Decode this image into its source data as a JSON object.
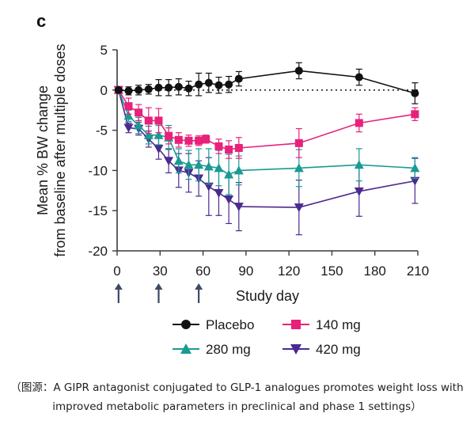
{
  "panel_label": "c",
  "caption": {
    "line1": "（图源：A GIPR antagonist conjugated to GLP-1 analogues promotes weight loss with",
    "line2": "improved metabolic parameters in preclinical and phase 1 settings）"
  },
  "chart_data": {
    "type": "line",
    "title": "",
    "xlabel": "Study day",
    "ylabel": [
      "Mean % BW change",
      "from baseline after multiple doses"
    ],
    "xlim": [
      0,
      210
    ],
    "ylim": [
      -20,
      5
    ],
    "xticks": [
      0,
      30,
      60,
      90,
      120,
      150,
      180,
      210
    ],
    "yticks": [
      5,
      0,
      -5,
      -10,
      -15,
      -20
    ],
    "dose_markers_day": [
      1,
      29,
      57
    ],
    "reference_line_y": 0,
    "legend_position": "bottom",
    "series": [
      {
        "name": "Placebo",
        "marker": "circle",
        "color": "#111111",
        "x": [
          1,
          8,
          15,
          22,
          29,
          36,
          43,
          50,
          57,
          64,
          71,
          78,
          85,
          127,
          169,
          208
        ],
        "y": [
          0,
          -0.1,
          0,
          0.1,
          0.3,
          0.3,
          0.4,
          0.2,
          0.7,
          0.9,
          0.6,
          0.7,
          1.4,
          2.4,
          1.6,
          -0.4
        ],
        "err": [
          0.2,
          0.5,
          0.6,
          0.6,
          1.0,
          1.0,
          1.0,
          0.9,
          1.4,
          1.2,
          1.0,
          1.0,
          0.9,
          1.0,
          1.0,
          1.3
        ]
      },
      {
        "name": "140 mg",
        "marker": "square",
        "color": "#e8217a",
        "x": [
          1,
          8,
          15,
          22,
          29,
          36,
          43,
          50,
          57,
          62,
          71,
          78,
          85,
          127,
          169,
          208
        ],
        "y": [
          0,
          -2.0,
          -2.8,
          -3.8,
          -3.8,
          -5.7,
          -6.2,
          -6.3,
          -6.3,
          -6.1,
          -7.0,
          -7.4,
          -7.2,
          -6.6,
          -4.1,
          -3.0
        ],
        "err": [
          0.2,
          1.0,
          1.0,
          1.6,
          1.5,
          1.0,
          0.9,
          0.7,
          0.6,
          0.5,
          0.9,
          1.1,
          1.3,
          1.8,
          1.1,
          0.8
        ]
      },
      {
        "name": "280 mg",
        "marker": "triangle-up",
        "color": "#1a9a92",
        "x": [
          1,
          8,
          15,
          22,
          29,
          36,
          43,
          50,
          57,
          64,
          71,
          78,
          85,
          127,
          169,
          208
        ],
        "y": [
          0,
          -3.2,
          -4.4,
          -5.6,
          -5.6,
          -5.9,
          -8.8,
          -9.3,
          -9.3,
          -9.5,
          -9.7,
          -10.5,
          -10.0,
          -9.7,
          -9.3,
          -9.7
        ],
        "err": [
          0.2,
          0.7,
          1.0,
          1.1,
          1.2,
          1.5,
          1.5,
          1.8,
          2.0,
          2.2,
          2.2,
          2.5,
          1.8,
          2.3,
          2.0,
          1.3
        ]
      },
      {
        "name": "420 mg",
        "marker": "triangle-down",
        "color": "#4b2a8f",
        "x": [
          1,
          8,
          15,
          22,
          29,
          36,
          43,
          50,
          57,
          64,
          71,
          78,
          85,
          127,
          169,
          208
        ],
        "y": [
          0,
          -4.7,
          -4.8,
          -6.1,
          -7.3,
          -8.8,
          -10.0,
          -10.3,
          -11.0,
          -12.0,
          -12.8,
          -13.6,
          -14.5,
          -14.6,
          -12.6,
          -11.3
        ],
        "err": [
          0.2,
          0.6,
          0.8,
          1.0,
          1.3,
          1.5,
          2.1,
          2.4,
          2.2,
          3.6,
          2.8,
          3.0,
          3.0,
          3.4,
          3.1,
          2.8
        ]
      }
    ]
  }
}
